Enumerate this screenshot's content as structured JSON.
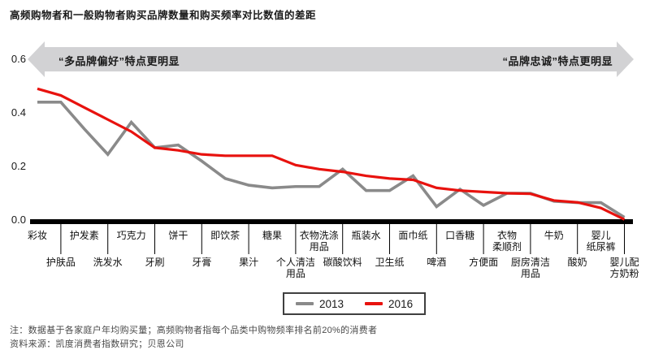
{
  "header": {
    "title": "高频购物者和一般购物者购买品牌数量和购买频率对比数值的差距"
  },
  "arrow": {
    "left_label": "“多品牌偏好”特点更明显",
    "right_label": "“品牌忠诚”特点更明显",
    "band_color": "#d2d2d4"
  },
  "legend": {
    "items": [
      {
        "label": "2013",
        "color": "#8a8a8a"
      },
      {
        "label": "2016",
        "color": "#e8120e"
      }
    ]
  },
  "footnotes": {
    "note": "注：数据基于各家庭户年均购买量；高频购物者指每个品类中购物频率排名前20%的消费者",
    "source": "资料来源：凯度消费者指数研究；贝恩公司"
  },
  "chart_data": {
    "type": "line",
    "title": "高频购物者和一般购物者购买品牌数量和购买频率对比数值的差距",
    "categories": [
      "彩妆",
      "护肤品",
      "护发素",
      "洗发水",
      "巧克力",
      "牙刷",
      "饼干",
      "牙膏",
      "即饮茶",
      "果汁",
      "糖果",
      "个人清洁\n用品",
      "衣物洗涤\n用品",
      "碳酸饮料",
      "瓶装水",
      "卫生纸",
      "面巾纸",
      "啤酒",
      "口香糖",
      "方便面",
      "衣物\n柔顺剂",
      "厨房清洁\n用品",
      "牛奶",
      "酸奶",
      "婴儿\n纸尿裤",
      "婴儿配\n方奶粉"
    ],
    "series": [
      {
        "name": "2013",
        "color": "#8a8a8a",
        "values": [
          0.44,
          0.44,
          0.34,
          0.245,
          0.365,
          0.27,
          0.28,
          0.22,
          0.155,
          0.13,
          0.12,
          0.125,
          0.125,
          0.19,
          0.11,
          0.11,
          0.165,
          0.05,
          0.115,
          0.055,
          0.1,
          0.1,
          0.07,
          0.065,
          0.065,
          0.01
        ]
      },
      {
        "name": "2016",
        "color": "#e8120e",
        "values": [
          0.49,
          0.465,
          0.42,
          0.375,
          0.33,
          0.27,
          0.26,
          0.245,
          0.24,
          0.24,
          0.24,
          0.205,
          0.19,
          0.18,
          0.165,
          0.155,
          0.15,
          0.12,
          0.11,
          0.105,
          0.1,
          0.098,
          0.073,
          0.066,
          0.045,
          0.002
        ]
      }
    ],
    "ylim": [
      0,
      0.6
    ],
    "yticks": [
      "0.0",
      "0.2",
      "0.4",
      "0.6"
    ],
    "grid": false,
    "axis_color": "#000000",
    "legend_position": "bottom-center"
  }
}
